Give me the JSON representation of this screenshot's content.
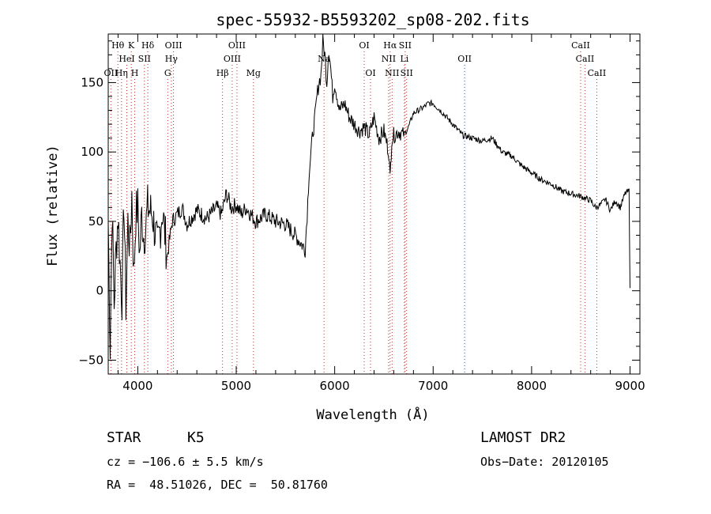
{
  "chart_data": {
    "type": "line",
    "title": "spec-55932-B5593202_sp08-202.fits",
    "xlabel": "Wavelength (Å)",
    "ylabel": "Flux (relative)",
    "xlim": [
      3700,
      9100
    ],
    "ylim": [
      -60,
      185
    ],
    "x_ticks": [
      4000,
      5000,
      6000,
      7000,
      8000,
      9000
    ],
    "y_ticks": [
      -50,
      0,
      50,
      100,
      150
    ],
    "grid": false,
    "series": [
      {
        "x": [
          3700,
          3720,
          3740,
          3760,
          3780,
          3800,
          3820,
          3840,
          3860,
          3880,
          3900,
          3920,
          3940,
          3960,
          3980,
          4000,
          4020,
          4040,
          4060,
          4080,
          4100,
          4150,
          4200,
          4250,
          4300,
          4350,
          4400,
          4450,
          4500,
          4600,
          4700,
          4800,
          4850,
          4900,
          4950,
          5000,
          5050,
          5100,
          5200,
          5300,
          5400,
          5500,
          5600,
          5650,
          5700,
          5720,
          5740,
          5760,
          5780,
          5800,
          5820,
          5840,
          5860,
          5880,
          5900,
          5920,
          5940,
          5960,
          5980,
          6000,
          6050,
          6100,
          6150,
          6200,
          6250,
          6300,
          6350,
          6400,
          6450,
          6500,
          6550,
          6563,
          6580,
          6600,
          6650,
          6700,
          6750,
          6800,
          6850,
          6900,
          6950,
          7000,
          7100,
          7200,
          7300,
          7400,
          7500,
          7600,
          7700,
          7800,
          7900,
          8000,
          8100,
          8200,
          8300,
          8400,
          8500,
          8600,
          8650,
          8700,
          8750,
          8800,
          8850,
          8900,
          8950,
          8990,
          9000
        ],
        "y": [
          50,
          -40,
          60,
          -10,
          30,
          55,
          20,
          -5,
          65,
          -10,
          50,
          30,
          70,
          10,
          55,
          60,
          25,
          55,
          40,
          45,
          60,
          55,
          30,
          58,
          25,
          50,
          55,
          60,
          48,
          58,
          52,
          60,
          55,
          70,
          60,
          62,
          55,
          60,
          50,
          55,
          50,
          48,
          40,
          35,
          30,
          55,
          85,
          100,
          115,
          125,
          140,
          150,
          155,
          180,
          170,
          150,
          175,
          160,
          140,
          150,
          130,
          135,
          125,
          120,
          115,
          118,
          112,
          125,
          110,
          115,
          100,
          80,
          110,
          112,
          115,
          112,
          118,
          128,
          130,
          132,
          135,
          135,
          128,
          120,
          112,
          110,
          108,
          110,
          100,
          97,
          90,
          85,
          80,
          77,
          72,
          70,
          68,
          65,
          60,
          62,
          66,
          58,
          65,
          60,
          70,
          72,
          2
        ]
      }
    ],
    "line_markers": {
      "red": [
        {
          "label": "Hθ",
          "x": 3798,
          "row": 1
        },
        {
          "label": "K",
          "x": 3934,
          "row": 1
        },
        {
          "label": "Hδ",
          "x": 4102,
          "row": 1
        },
        {
          "label": "OIII",
          "x": 4363,
          "row": 1
        },
        {
          "label": "OIII",
          "x": 5007,
          "row": 1
        },
        {
          "label": "OI",
          "x": 6300,
          "row": 1
        },
        {
          "label": "Hα",
          "x": 6563,
          "row": 1
        },
        {
          "label": "SII",
          "x": 6716,
          "row": 1
        },
        {
          "label": "CaII",
          "x": 8498,
          "row": 1
        },
        {
          "label": "HeI",
          "x": 3889,
          "row": 2
        },
        {
          "label": "SII",
          "x": 4068,
          "row": 2
        },
        {
          "label": "Hγ",
          "x": 4341,
          "row": 2
        },
        {
          "label": "OIII",
          "x": 4959,
          "row": 2
        },
        {
          "label": "Na",
          "x": 5892,
          "row": 2
        },
        {
          "label": "NII",
          "x": 6548,
          "row": 2
        },
        {
          "label": "Li",
          "x": 6708,
          "row": 2
        },
        {
          "label": "CaII",
          "x": 8542,
          "row": 2
        },
        {
          "label": "OII",
          "x": 3727,
          "row": 3
        },
        {
          "label": "Hη",
          "x": 3835,
          "row": 3
        },
        {
          "label": "H",
          "x": 3969,
          "row": 3
        },
        {
          "label": "G",
          "x": 4304,
          "row": 3
        },
        {
          "label": "Hβ",
          "x": 4861,
          "row": 3
        },
        {
          "label": "Mg",
          "x": 5175,
          "row": 3
        },
        {
          "label": "OI",
          "x": 6364,
          "row": 3
        },
        {
          "label": "NII",
          "x": 6583,
          "row": 3
        },
        {
          "label": "SII",
          "x": 6731,
          "row": 3
        },
        {
          "label": "CaII",
          "x": 8662,
          "row": 3
        }
      ],
      "blue": [
        {
          "label": "OII",
          "x": 7320,
          "row": 2
        }
      ]
    }
  },
  "info": {
    "class_label": "STAR",
    "subclass_label": "K5",
    "survey_label": "LAMOST DR2",
    "cz_text": "cz = −106.6 ± 5.5 km/s",
    "obs_date_text": "Obs−Date: 20120105",
    "coords_text": "RA =  48.51026, DEC =  50.81760"
  },
  "colors": {
    "spectrum": "#000000",
    "line_marker_red": "#cc2222",
    "line_marker_blue": "#2a4fcf"
  }
}
